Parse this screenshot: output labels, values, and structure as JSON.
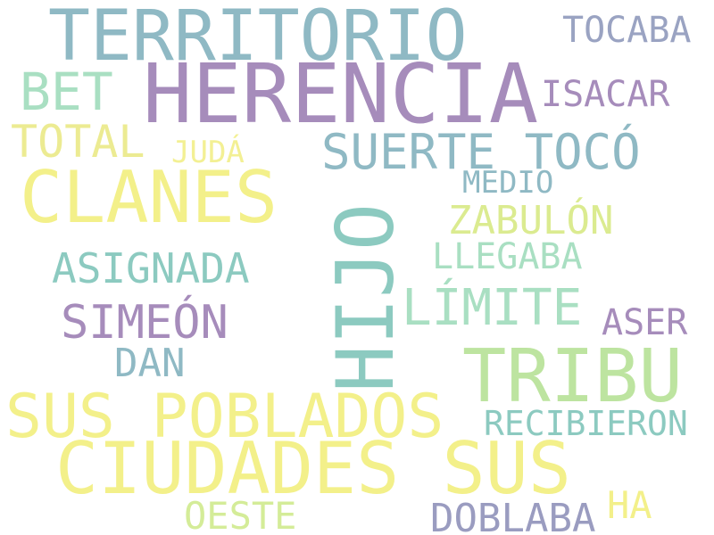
{
  "words": {
    "territorio": {
      "text": "TERRITORIO",
      "color": "#8fb9c4"
    },
    "tocaba": {
      "text": "TOCABA",
      "color": "#9aa3c2"
    },
    "herencia": {
      "text": "HERENCIA",
      "color": "#a68cbb"
    },
    "bet": {
      "text": "BET",
      "color": "#a9dfc2"
    },
    "isacar": {
      "text": "ISACAR",
      "color": "#a68cbb"
    },
    "total": {
      "text": "TOTAL",
      "color": "#eceb92"
    },
    "suerte_toco": {
      "text": "SUERTE TOCÓ",
      "color": "#8fb9c4"
    },
    "juda": {
      "text": "JUDÁ",
      "color": "#f3f094"
    },
    "clanes": {
      "text": "CLANES",
      "color": "#f3f08a"
    },
    "medio": {
      "text": "MEDIO",
      "color": "#8fb9c4"
    },
    "zabulon": {
      "text": "ZABULÓN",
      "color": "#dbeb90"
    },
    "hijo": {
      "text": "HIJO",
      "color": "#8ccac0"
    },
    "llegaba": {
      "text": "LLEGABA",
      "color": "#a9dfc2"
    },
    "asignada": {
      "text": "ASIGNADA",
      "color": "#8ccac0"
    },
    "limite": {
      "text": "LÍMITE",
      "color": "#a9dfc2"
    },
    "simeon": {
      "text": "SIMEÓN",
      "color": "#a68cbb"
    },
    "aser": {
      "text": "ASER",
      "color": "#a68cbb"
    },
    "dan": {
      "text": "DAN",
      "color": "#8fb9c4"
    },
    "tribu": {
      "text": "TRIBU",
      "color": "#bde4a0"
    },
    "sus_pobladas": {
      "text": "SUS POBLADOS",
      "color": "#f3f08a"
    },
    "recibieron": {
      "text": "RECIBIERON",
      "color": "#8ccac0"
    },
    "ciudades_sus": {
      "text": "CIUDADES SUS",
      "color": "#f3f08a"
    },
    "ha": {
      "text": "HA",
      "color": "#f3f08a"
    },
    "oeste": {
      "text": "OESTE",
      "color": "#d4ec98"
    },
    "doblaba": {
      "text": "DOBLABA",
      "color": "#9a9cc0"
    }
  }
}
